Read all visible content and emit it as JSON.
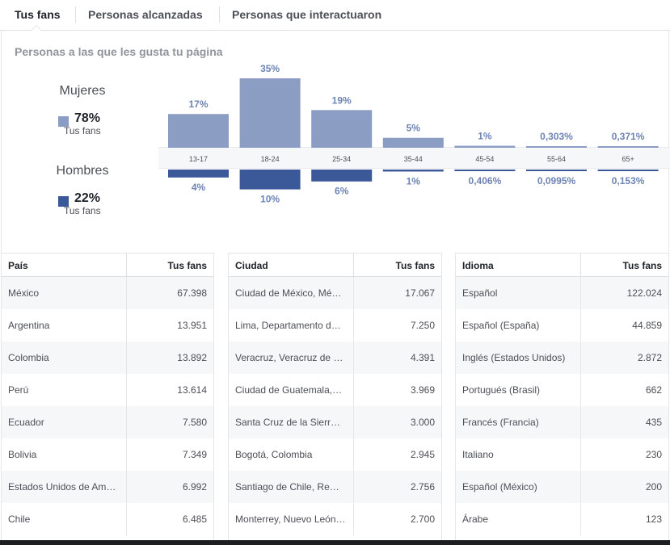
{
  "tabs": [
    {
      "label": "Tus fans",
      "active": true
    },
    {
      "label": "Personas alcanzadas",
      "active": false
    },
    {
      "label": "Personas que interactuaron",
      "active": false
    }
  ],
  "panel_title": "Personas a las que les gusta tu página",
  "legend": {
    "women": {
      "label": "Mujeres",
      "pct": "78%",
      "sub": "Tus fans",
      "color": "#8b9dc3"
    },
    "men": {
      "label": "Hombres",
      "pct": "22%",
      "sub": "Tus fans",
      "color": "#3b5998"
    }
  },
  "chart_data": {
    "type": "bar",
    "categories": [
      "13-17",
      "18-24",
      "25-34",
      "35-44",
      "45-54",
      "55-64",
      "65+"
    ],
    "series": [
      {
        "name": "Mujeres",
        "values": [
          17,
          35,
          19,
          5,
          1,
          0.303,
          0.371
        ],
        "labels": [
          "17%",
          "35%",
          "19%",
          "5%",
          "1%",
          "0,303%",
          "0,371%"
        ],
        "color": "#8b9dc3"
      },
      {
        "name": "Hombres",
        "values": [
          4,
          10,
          6,
          1,
          0.406,
          0.0995,
          0.153
        ],
        "labels": [
          "4%",
          "10%",
          "6%",
          "1%",
          "0,406%",
          "0,0995%",
          "0,153%"
        ],
        "color": "#3b5998"
      }
    ]
  },
  "tables": [
    {
      "col1": "País",
      "col2": "Tus fans",
      "rows": [
        [
          "México",
          "67.398"
        ],
        [
          "Argentina",
          "13.951"
        ],
        [
          "Colombia",
          "13.892"
        ],
        [
          "Perú",
          "13.614"
        ],
        [
          "Ecuador",
          "7.580"
        ],
        [
          "Bolivia",
          "7.349"
        ],
        [
          "Estados Unidos de Am…",
          "6.992"
        ],
        [
          "Chile",
          "6.485"
        ]
      ]
    },
    {
      "col1": "Ciudad",
      "col2": "Tus fans",
      "rows": [
        [
          "Ciudad de México, Mé…",
          "17.067"
        ],
        [
          "Lima, Departamento d…",
          "7.250"
        ],
        [
          "Veracruz, Veracruz de …",
          "4.391"
        ],
        [
          "Ciudad de Guatemala,…",
          "3.969"
        ],
        [
          "Santa Cruz de la Sierr…",
          "3.000"
        ],
        [
          "Bogotá, Colombia",
          "2.945"
        ],
        [
          "Santiago de Chile, Re…",
          "2.756"
        ],
        [
          "Monterrey, Nuevo León…",
          "2.700"
        ]
      ]
    },
    {
      "col1": "Idioma",
      "col2": "Tus fans",
      "rows": [
        [
          "Español",
          "122.024"
        ],
        [
          "Español (España)",
          "44.859"
        ],
        [
          "Inglés (Estados Unidos)",
          "2.872"
        ],
        [
          "Portugués (Brasil)",
          "662"
        ],
        [
          "Francés (Francia)",
          "435"
        ],
        [
          "Italiano",
          "230"
        ],
        [
          "Español (México)",
          "200"
        ],
        [
          "Árabe",
          "123"
        ]
      ]
    }
  ]
}
